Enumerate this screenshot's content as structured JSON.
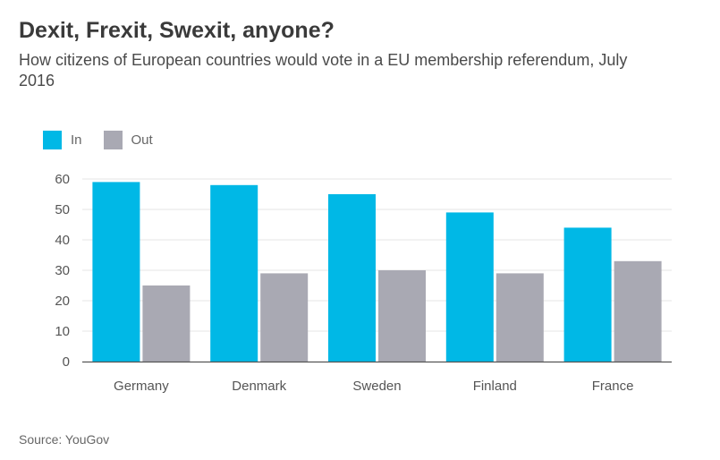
{
  "chart_data": {
    "type": "bar",
    "title": "Dexit, Frexit, Swexit, anyone?",
    "subtitle": "How citizens of European countries would vote in a EU membership referendum, July 2016",
    "categories": [
      "Germany",
      "Denmark",
      "Sweden",
      "Finland",
      "France"
    ],
    "series": [
      {
        "name": "In",
        "color": "#00b8e6",
        "values": [
          59,
          58,
          55,
          49,
          44
        ]
      },
      {
        "name": "Out",
        "color": "#a9a9b3",
        "values": [
          25,
          29,
          30,
          29,
          33
        ]
      }
    ],
    "yticks": [
      0,
      10,
      20,
      30,
      40,
      50,
      60
    ],
    "ylim": [
      0,
      60
    ],
    "xlabel": "",
    "ylabel": "",
    "grid": true,
    "legend_position": "top-left",
    "source": "Source: YouGov"
  }
}
